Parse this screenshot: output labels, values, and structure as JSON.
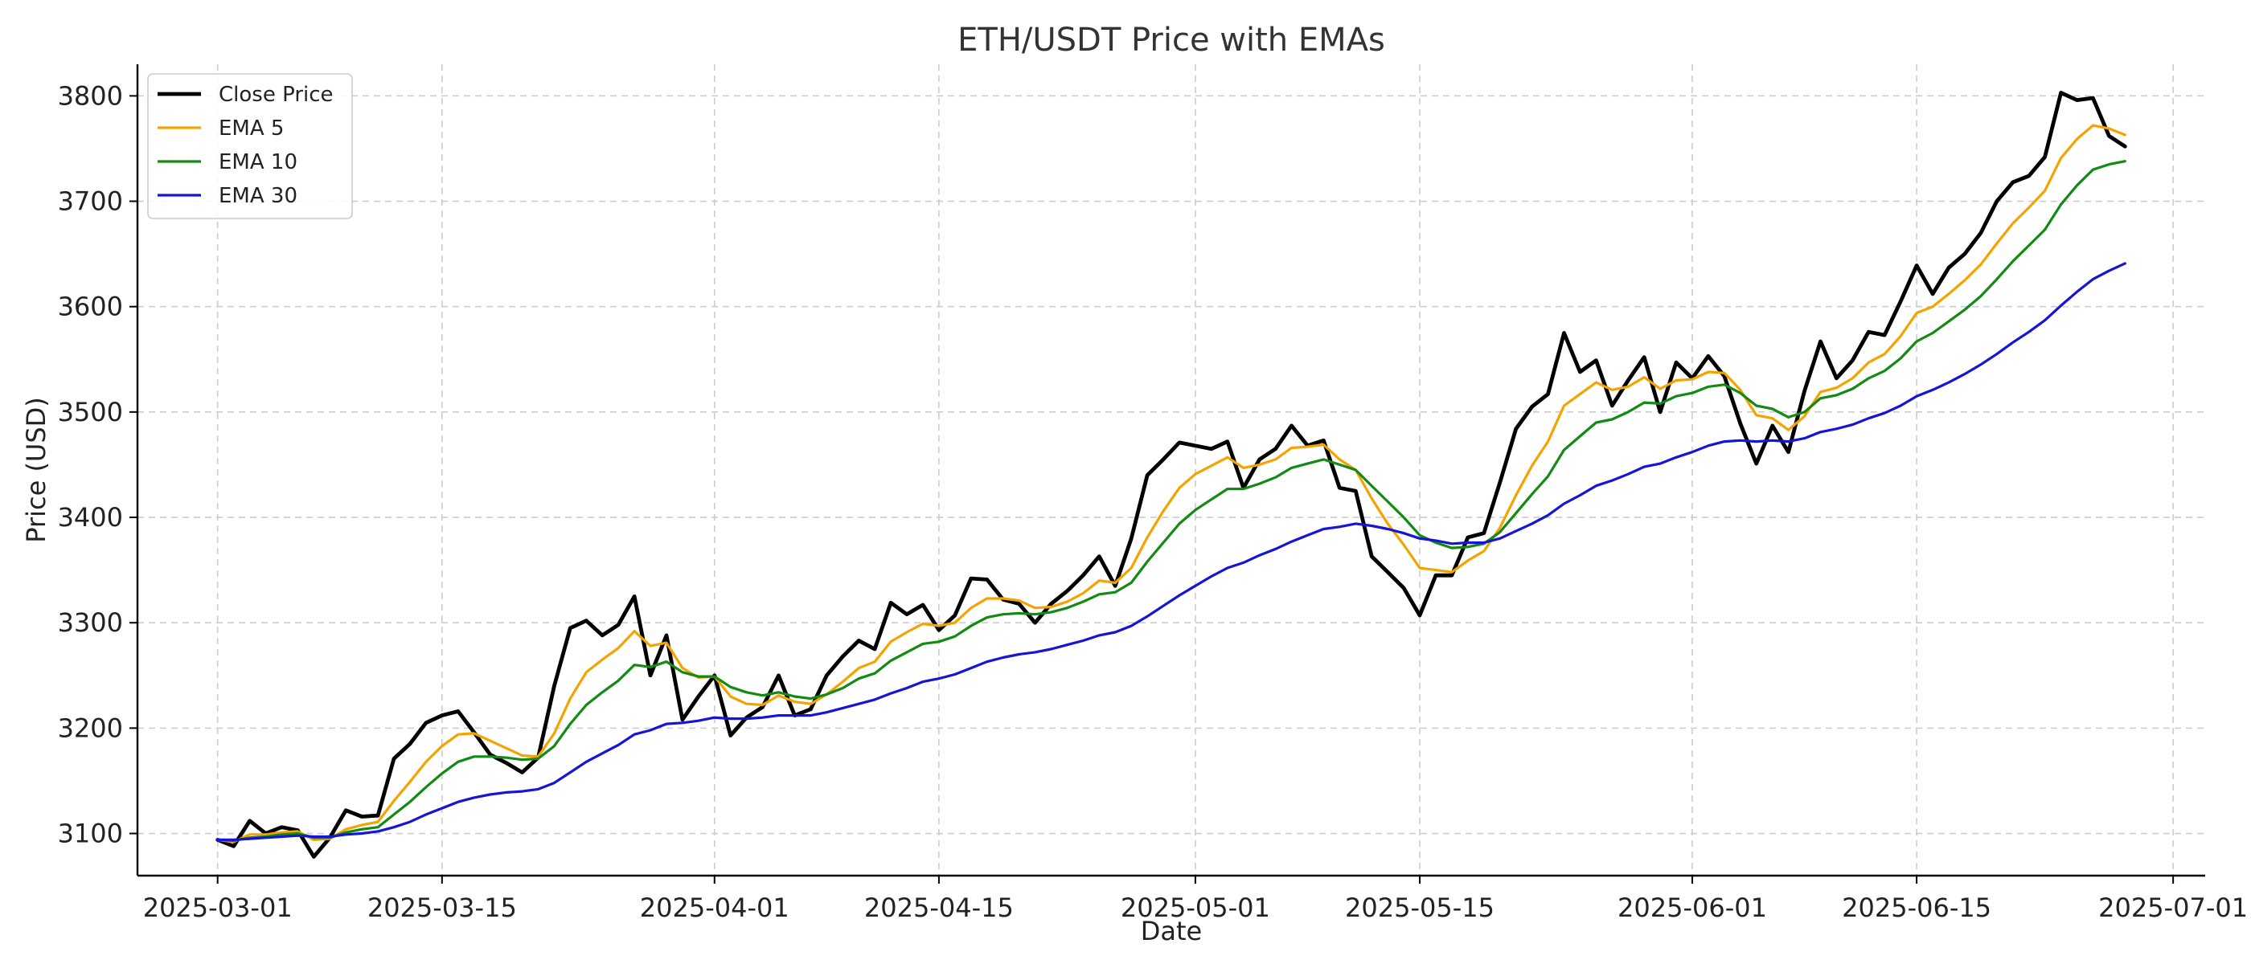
{
  "chart_data": {
    "type": "line",
    "title": "ETH/USDT Price with EMAs",
    "xlabel": "Date",
    "ylabel": "Price (USD)",
    "x_start": "2025-03-01",
    "x_end": "2025-06-29",
    "xlim": [
      "2025-02-24",
      "2025-07-03"
    ],
    "ylim": [
      3060,
      3830
    ],
    "yticks": [
      3100,
      3200,
      3300,
      3400,
      3500,
      3600,
      3700,
      3800
    ],
    "xticks": [
      "2025-03-01",
      "2025-03-15",
      "2025-04-01",
      "2025-04-15",
      "2025-05-01",
      "2025-05-15",
      "2025-06-01",
      "2025-06-15",
      "2025-07-01"
    ],
    "grid": true,
    "legend": "top-left",
    "series": [
      {
        "name": "Close Price",
        "color": "#000000",
        "values": [
          3094,
          3088,
          3112,
          3100,
          3106,
          3103,
          3078,
          3096,
          3122,
          3116,
          3117,
          3171,
          3185,
          3205,
          3212,
          3216,
          3196,
          3175,
          3167,
          3158,
          3172,
          3240,
          3295,
          3302,
          3288,
          3298,
          3325,
          3250,
          3288,
          3208,
          3230,
          3250,
          3193,
          3210,
          3220,
          3250,
          3212,
          3218,
          3250,
          3268,
          3283,
          3275,
          3319,
          3308,
          3317,
          3293,
          3307,
          3342,
          3341,
          3322,
          3318,
          3300,
          3318,
          3330,
          3345,
          3363,
          3335,
          3380,
          3440,
          3455,
          3471,
          3468,
          3465,
          3472,
          3428,
          3455,
          3465,
          3487,
          3468,
          3473,
          3428,
          3425,
          3363,
          3348,
          3333,
          3307,
          3345,
          3345,
          3381,
          3385,
          3433,
          3484,
          3505,
          3517,
          3575,
          3538,
          3549,
          3506,
          3530,
          3552,
          3500,
          3547,
          3532,
          3553,
          3534,
          3489,
          3451,
          3487,
          3462,
          3520,
          3567,
          3532,
          3549,
          3576,
          3573,
          3605,
          3639,
          3612,
          3637,
          3650,
          3670,
          3700,
          3718,
          3724,
          3742,
          3803,
          3796,
          3798,
          3762,
          3752
        ]
      },
      {
        "name": "EMA 5",
        "color": "#f4a300",
        "values": [
          3094,
          3092,
          3099,
          3099,
          3101,
          3102,
          3094,
          3095,
          3104,
          3108,
          3111,
          3131,
          3149,
          3168,
          3183,
          3194,
          3195,
          3188,
          3181,
          3174,
          3173,
          3195,
          3228,
          3253,
          3265,
          3276,
          3292,
          3278,
          3281,
          3257,
          3248,
          3249,
          3230,
          3223,
          3222,
          3231,
          3225,
          3223,
          3232,
          3244,
          3257,
          3263,
          3282,
          3291,
          3299,
          3297,
          3300,
          3314,
          3323,
          3323,
          3321,
          3314,
          3315,
          3320,
          3328,
          3340,
          3338,
          3352,
          3381,
          3406,
          3428,
          3441,
          3449,
          3457,
          3447,
          3450,
          3455,
          3466,
          3467,
          3469,
          3455,
          3445,
          3418,
          3394,
          3374,
          3352,
          3350,
          3348,
          3359,
          3368,
          3390,
          3421,
          3449,
          3472,
          3506,
          3517,
          3528,
          3521,
          3524,
          3533,
          3522,
          3530,
          3531,
          3538,
          3537,
          3521,
          3497,
          3494,
          3483,
          3496,
          3519,
          3523,
          3532,
          3547,
          3555,
          3572,
          3594,
          3600,
          3612,
          3625,
          3640,
          3660,
          3679,
          3694,
          3710,
          3741,
          3759,
          3772,
          3769,
          3763
        ]
      },
      {
        "name": "EMA 10",
        "color": "#138a13",
        "values": [
          3094,
          3093,
          3096,
          3097,
          3099,
          3100,
          3096,
          3096,
          3101,
          3104,
          3106,
          3118,
          3130,
          3144,
          3157,
          3168,
          3173,
          3173,
          3172,
          3170,
          3171,
          3183,
          3204,
          3222,
          3234,
          3245,
          3260,
          3258,
          3263,
          3253,
          3249,
          3249,
          3239,
          3234,
          3231,
          3234,
          3230,
          3228,
          3232,
          3238,
          3247,
          3252,
          3264,
          3272,
          3280,
          3282,
          3287,
          3297,
          3305,
          3308,
          3309,
          3308,
          3310,
          3314,
          3320,
          3327,
          3329,
          3338,
          3358,
          3376,
          3394,
          3407,
          3417,
          3427,
          3427,
          3432,
          3438,
          3447,
          3451,
          3455,
          3450,
          3445,
          3430,
          3415,
          3400,
          3383,
          3376,
          3371,
          3372,
          3375,
          3386,
          3404,
          3422,
          3439,
          3464,
          3477,
          3490,
          3493,
          3500,
          3509,
          3508,
          3515,
          3518,
          3524,
          3526,
          3518,
          3506,
          3503,
          3495,
          3500,
          3513,
          3516,
          3522,
          3532,
          3539,
          3551,
          3567,
          3575,
          3586,
          3597,
          3610,
          3626,
          3643,
          3658,
          3673,
          3697,
          3715,
          3730,
          3735,
          3738
        ]
      },
      {
        "name": "EMA 30",
        "color": "#1515d6",
        "values": [
          3094,
          3094,
          3095,
          3096,
          3097,
          3098,
          3097,
          3097,
          3099,
          3100,
          3102,
          3106,
          3111,
          3118,
          3124,
          3130,
          3134,
          3137,
          3139,
          3140,
          3142,
          3148,
          3158,
          3168,
          3176,
          3184,
          3194,
          3198,
          3204,
          3205,
          3207,
          3210,
          3209,
          3209,
          3210,
          3212,
          3212,
          3212,
          3215,
          3219,
          3223,
          3227,
          3233,
          3238,
          3244,
          3247,
          3251,
          3257,
          3263,
          3267,
          3270,
          3272,
          3275,
          3279,
          3283,
          3288,
          3291,
          3297,
          3306,
          3316,
          3326,
          3335,
          3344,
          3352,
          3357,
          3364,
          3370,
          3377,
          3383,
          3389,
          3391,
          3394,
          3392,
          3389,
          3385,
          3380,
          3378,
          3375,
          3376,
          3376,
          3380,
          3387,
          3394,
          3402,
          3413,
          3421,
          3430,
          3435,
          3441,
          3448,
          3451,
          3457,
          3462,
          3468,
          3472,
          3473,
          3472,
          3473,
          3472,
          3475,
          3481,
          3484,
          3488,
          3494,
          3499,
          3506,
          3515,
          3521,
          3528,
          3536,
          3545,
          3555,
          3566,
          3576,
          3587,
          3601,
          3614,
          3626,
          3634,
          3641
        ]
      }
    ]
  }
}
